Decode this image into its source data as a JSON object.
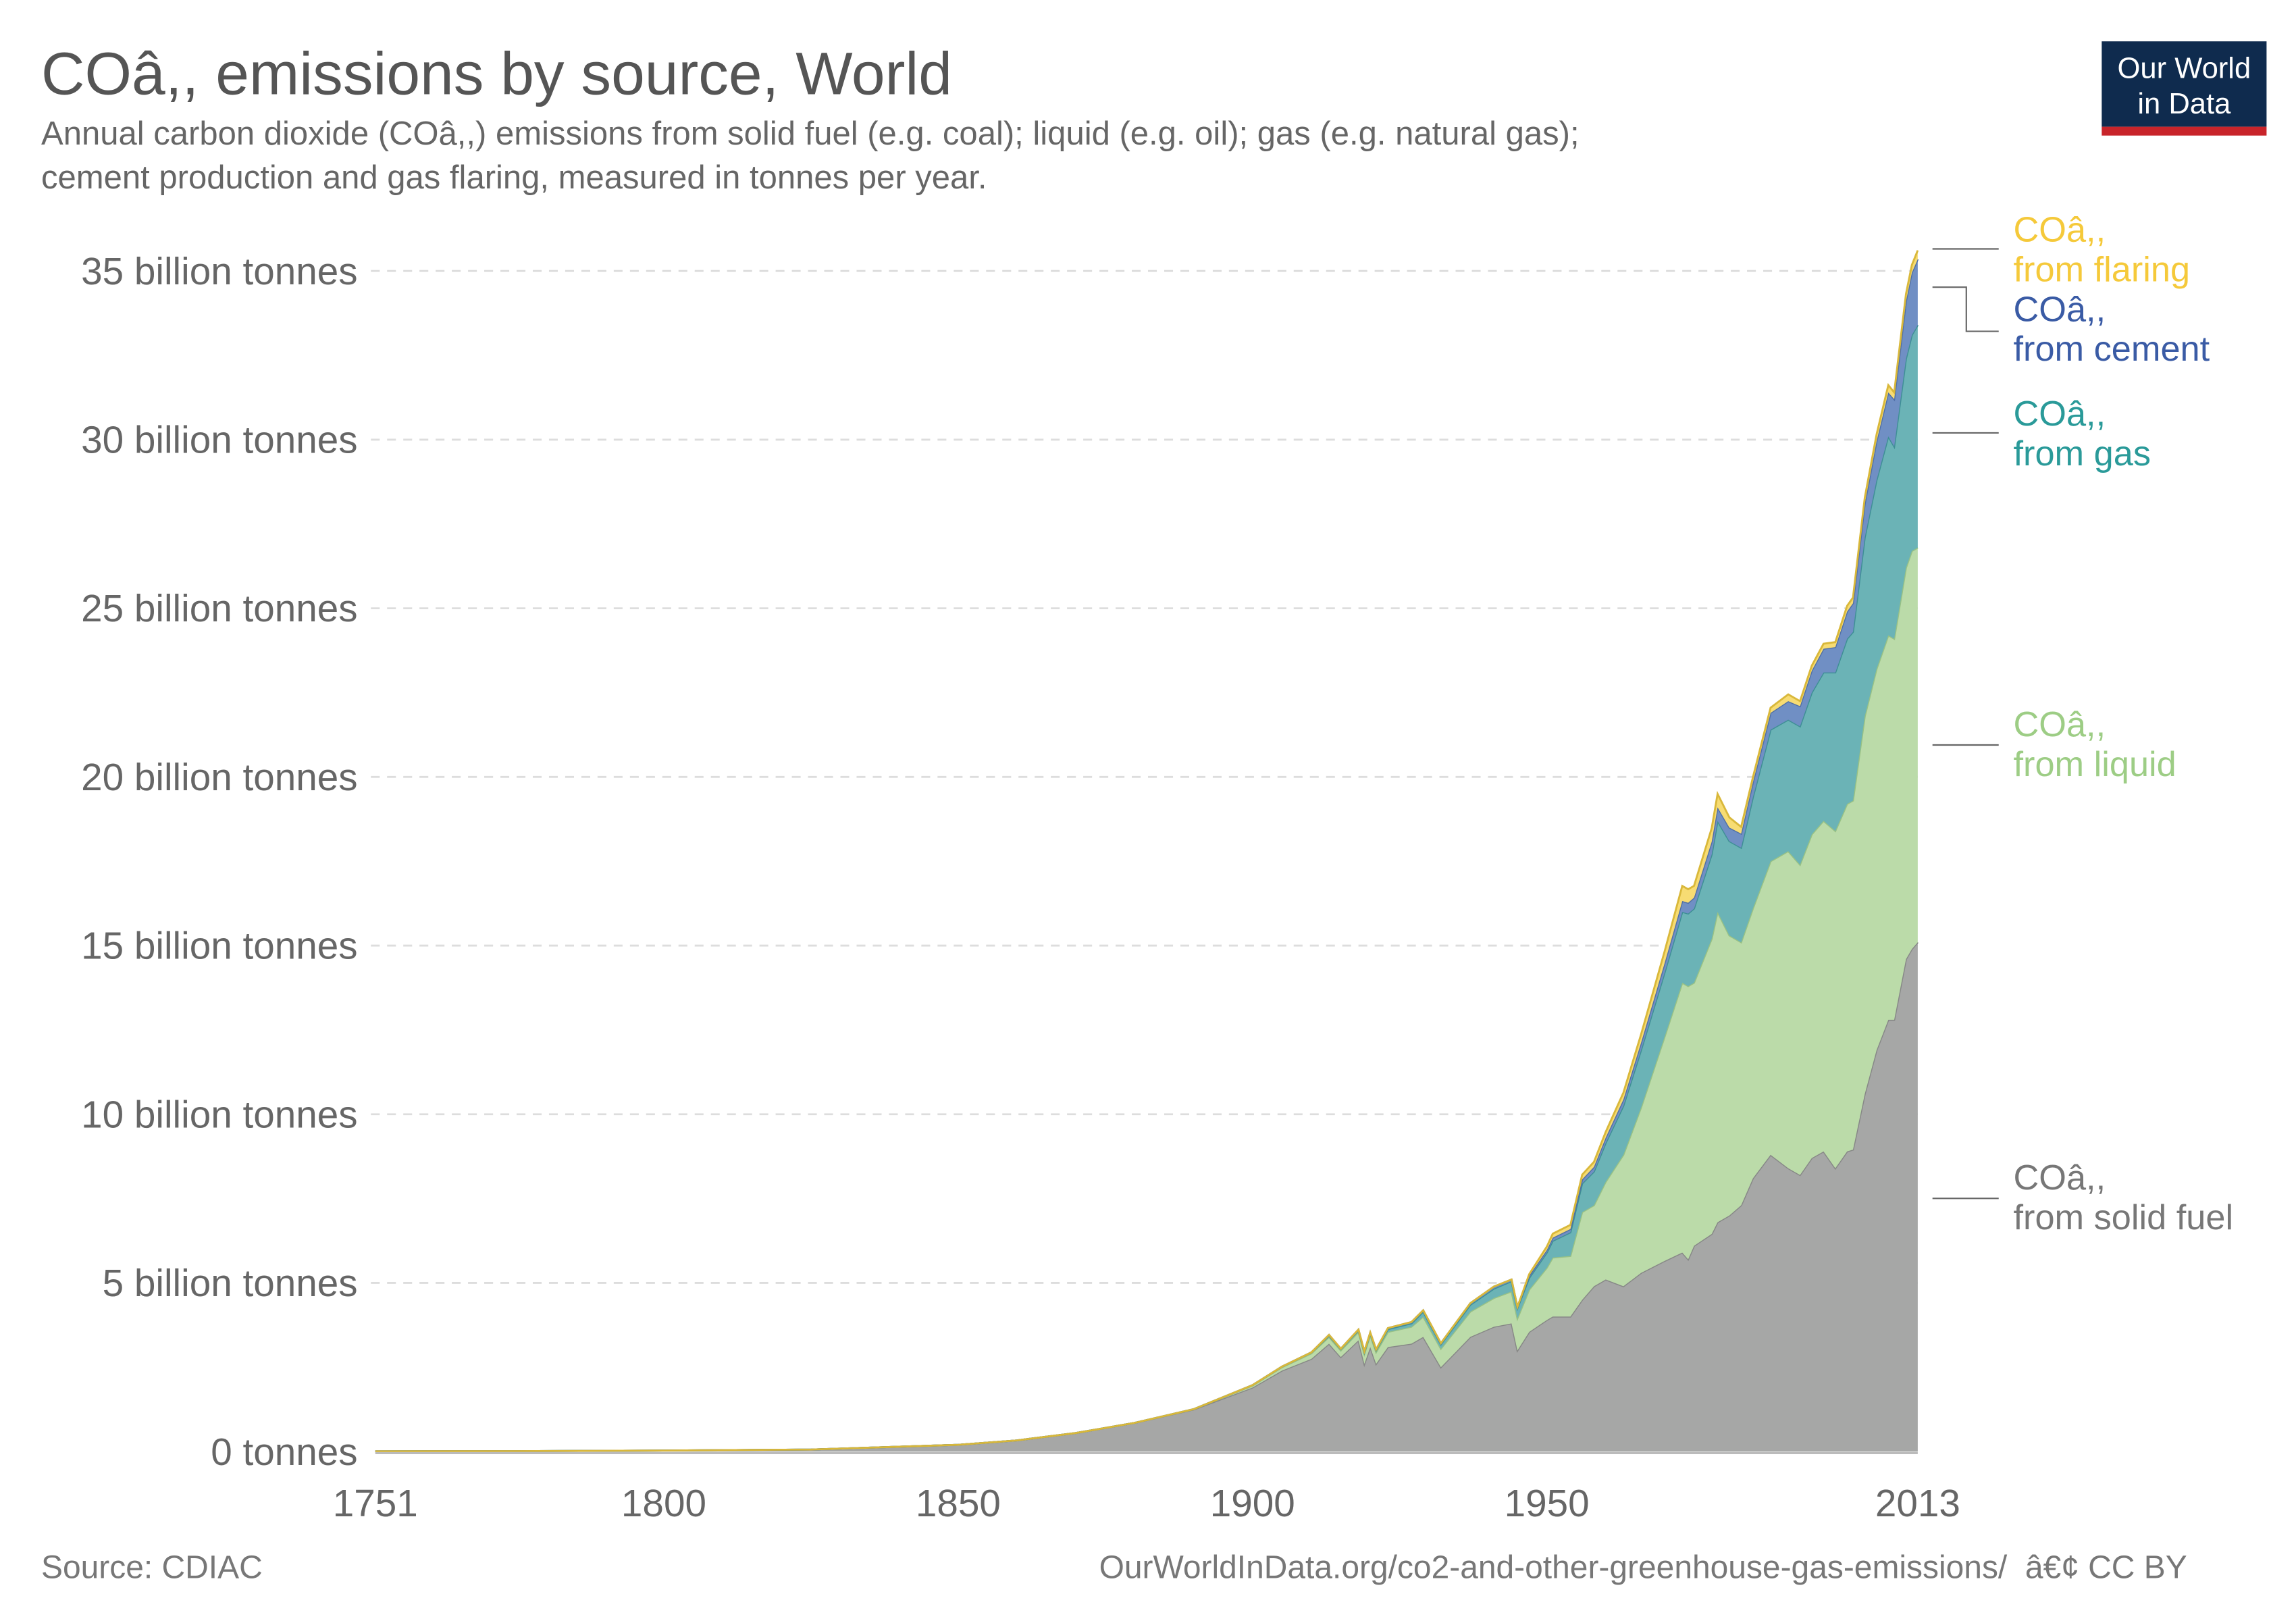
{
  "header": {
    "title": "COâ,, emissions by source, World",
    "subtitle_line1": "Annual carbon dioxide (COâ,,) emissions from solid fuel (e.g. coal); liquid (e.g. oil); gas (e.g. natural gas);",
    "subtitle_line2": "cement production and gas flaring, measured in tonnes per year."
  },
  "logo": {
    "line1": "Our World",
    "line2": "in Data",
    "bg_color": "#0f2b4e",
    "bar_color": "#c8242a"
  },
  "footer": {
    "source": "Source: CDIAC",
    "url": "OurWorldInData.org/co2-and-other-greenhouse-gas-emissions/  â€¢ CC BY"
  },
  "chart_data": {
    "type": "area",
    "stacked": true,
    "title": "COâ,, emissions by source, World",
    "xlim": [
      1751,
      2013
    ],
    "ylim": [
      0,
      35
    ],
    "y_unit": "billion tonnes",
    "x_ticks": [
      "1751",
      "1800",
      "1850",
      "1900",
      "1950",
      "2013"
    ],
    "x_tick_values": [
      1751,
      1800,
      1850,
      1900,
      1950,
      2013
    ],
    "y_ticks": [
      "0 tonnes",
      "5 billion tonnes",
      "10 billion tonnes",
      "15 billion tonnes",
      "20 billion tonnes",
      "25 billion tonnes",
      "30 billion tonnes",
      "35 billion tonnes"
    ],
    "y_tick_values": [
      0,
      5,
      10,
      15,
      20,
      25,
      30,
      35
    ],
    "grid": "horizontal dashed",
    "legend": "right, inline labels",
    "x": [
      1751,
      1775,
      1800,
      1825,
      1850,
      1860,
      1870,
      1880,
      1890,
      1900,
      1905,
      1910,
      1913,
      1915,
      1918,
      1919,
      1920,
      1921,
      1923,
      1927,
      1929,
      1932,
      1937,
      1941,
      1944,
      1945,
      1947,
      1950,
      1951,
      1954,
      1956,
      1958,
      1960,
      1963,
      1966,
      1970,
      1973,
      1974,
      1975,
      1978,
      1979,
      1981,
      1983,
      1985,
      1988,
      1991,
      1993,
      1995,
      1997,
      1999,
      2001,
      2002,
      2004,
      2006,
      2008,
      2009,
      2011,
      2012,
      2013
    ],
    "series": [
      {
        "name": "COâ,,\nfrom solid fuel",
        "label1": "COâ,,",
        "label2": "from solid fuel",
        "color": "#a6a7a6",
        "stroke": "#868786",
        "label_color": "#777777",
        "values": [
          0.009,
          0.015,
          0.03,
          0.06,
          0.2,
          0.33,
          0.55,
          0.85,
          1.25,
          1.9,
          2.4,
          2.75,
          3.2,
          2.8,
          3.3,
          2.6,
          3.1,
          2.6,
          3.1,
          3.2,
          3.4,
          2.5,
          3.4,
          3.7,
          3.8,
          3.0,
          3.55,
          3.9,
          4.0,
          4.0,
          4.5,
          4.9,
          5.1,
          4.9,
          5.3,
          5.65,
          5.9,
          5.7,
          6.1,
          6.45,
          6.8,
          7.0,
          7.3,
          8.1,
          8.8,
          8.4,
          8.2,
          8.7,
          8.9,
          8.4,
          8.9,
          8.95,
          10.6,
          11.9,
          12.8,
          12.8,
          14.6,
          14.9,
          15.1
        ]
      },
      {
        "name": "COâ,,\nfrom liquid",
        "label1": "COâ,,",
        "label2": "from liquid",
        "color": "#bbdba9",
        "stroke": "#98c184",
        "label_color": "#9dcd85",
        "values": [
          0,
          0,
          0,
          0,
          0,
          0,
          0,
          0,
          0.005,
          0.06,
          0.1,
          0.16,
          0.2,
          0.2,
          0.25,
          0.3,
          0.35,
          0.35,
          0.45,
          0.5,
          0.6,
          0.55,
          0.75,
          0.85,
          0.95,
          0.95,
          1.25,
          1.55,
          1.75,
          1.8,
          2.6,
          2.4,
          2.9,
          3.9,
          4.9,
          6.65,
          8.0,
          8.1,
          7.8,
          8.75,
          9.2,
          8.3,
          7.8,
          8.0,
          8.7,
          9.4,
          9.2,
          9.6,
          9.8,
          10.0,
          10.3,
          10.35,
          11.2,
          11.3,
          11.4,
          11.3,
          11.6,
          11.8,
          11.7
        ]
      },
      {
        "name": "COâ,,\nfrom gas",
        "label1": "COâ,,",
        "label2": "from gas",
        "color": "#6bb3b6",
        "stroke": "#3e8f95",
        "label_color": "#2a9a99",
        "values": [
          0,
          0,
          0,
          0,
          0,
          0,
          0,
          0,
          0,
          0.01,
          0.02,
          0.03,
          0.04,
          0.04,
          0.05,
          0.05,
          0.06,
          0.06,
          0.08,
          0.1,
          0.15,
          0.13,
          0.2,
          0.28,
          0.3,
          0.3,
          0.35,
          0.45,
          0.5,
          0.7,
          0.85,
          1.0,
          1.15,
          1.45,
          1.7,
          1.9,
          2.1,
          2.15,
          2.2,
          2.5,
          2.7,
          2.8,
          2.8,
          3.3,
          3.9,
          3.9,
          4.1,
          4.2,
          4.4,
          4.7,
          4.9,
          5.0,
          5.3,
          5.6,
          5.9,
          5.7,
          6.2,
          6.4,
          6.6
        ]
      },
      {
        "name": "COâ,,\nfrom cement",
        "label1": "COâ,,",
        "label2": "from cement",
        "color": "#708fc4",
        "stroke": "#4f6fa6",
        "label_color": "#3a5ba5",
        "values": [
          0,
          0,
          0,
          0,
          0,
          0,
          0,
          0,
          0,
          0,
          0,
          0,
          0.02,
          0.01,
          0.02,
          0.02,
          0.02,
          0.02,
          0.03,
          0.04,
          0.04,
          0.03,
          0.05,
          0.06,
          0.05,
          0.04,
          0.06,
          0.08,
          0.09,
          0.1,
          0.12,
          0.14,
          0.16,
          0.19,
          0.22,
          0.28,
          0.32,
          0.32,
          0.32,
          0.38,
          0.4,
          0.4,
          0.42,
          0.44,
          0.5,
          0.55,
          0.6,
          0.65,
          0.7,
          0.75,
          0.8,
          0.85,
          1.0,
          1.15,
          1.3,
          1.4,
          1.7,
          1.85,
          1.95
        ]
      },
      {
        "name": "COâ,,\nfrom flaring",
        "label1": "COâ,,",
        "label2": "from flaring",
        "color": "#f7dc73",
        "stroke": "#d9b83a",
        "label_color": "#f5c93a",
        "values": [
          0,
          0,
          0,
          0,
          0,
          0,
          0,
          0,
          0,
          0,
          0,
          0,
          0,
          0,
          0,
          0,
          0,
          0,
          0,
          0,
          0,
          0,
          0,
          0,
          0,
          0,
          0.05,
          0.1,
          0.12,
          0.12,
          0.14,
          0.15,
          0.17,
          0.2,
          0.25,
          0.35,
          0.45,
          0.4,
          0.35,
          0.4,
          0.4,
          0.3,
          0.2,
          0.15,
          0.15,
          0.2,
          0.15,
          0.15,
          0.15,
          0.15,
          0.17,
          0.17,
          0.18,
          0.2,
          0.22,
          0.2,
          0.22,
          0.23,
          0.26
        ]
      }
    ]
  }
}
